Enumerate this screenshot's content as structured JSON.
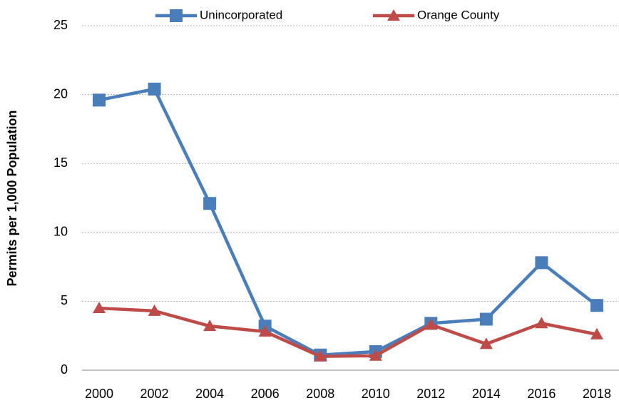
{
  "chart_data": {
    "type": "line",
    "y_label": "Permits per 1,000 Population",
    "categories": [
      "2000",
      "2002",
      "2004",
      "2006",
      "2008",
      "2010",
      "2012",
      "2014",
      "2016",
      "2018"
    ],
    "series": [
      {
        "name": "Unincorporated",
        "color": "#4a7ebb",
        "marker": "square",
        "values": [
          19.6,
          20.4,
          12.1,
          3.2,
          1.1,
          1.35,
          3.4,
          3.7,
          7.8,
          4.7
        ]
      },
      {
        "name": "Orange County",
        "color": "#be4b48",
        "marker": "triangle",
        "values": [
          4.5,
          4.3,
          3.2,
          2.8,
          1.0,
          1.05,
          3.3,
          1.9,
          3.4,
          2.6
        ]
      }
    ],
    "ylim": [
      0,
      25
    ],
    "yticks": [
      0,
      5,
      10,
      15,
      20,
      25
    ],
    "grid": true,
    "legend": "top"
  }
}
